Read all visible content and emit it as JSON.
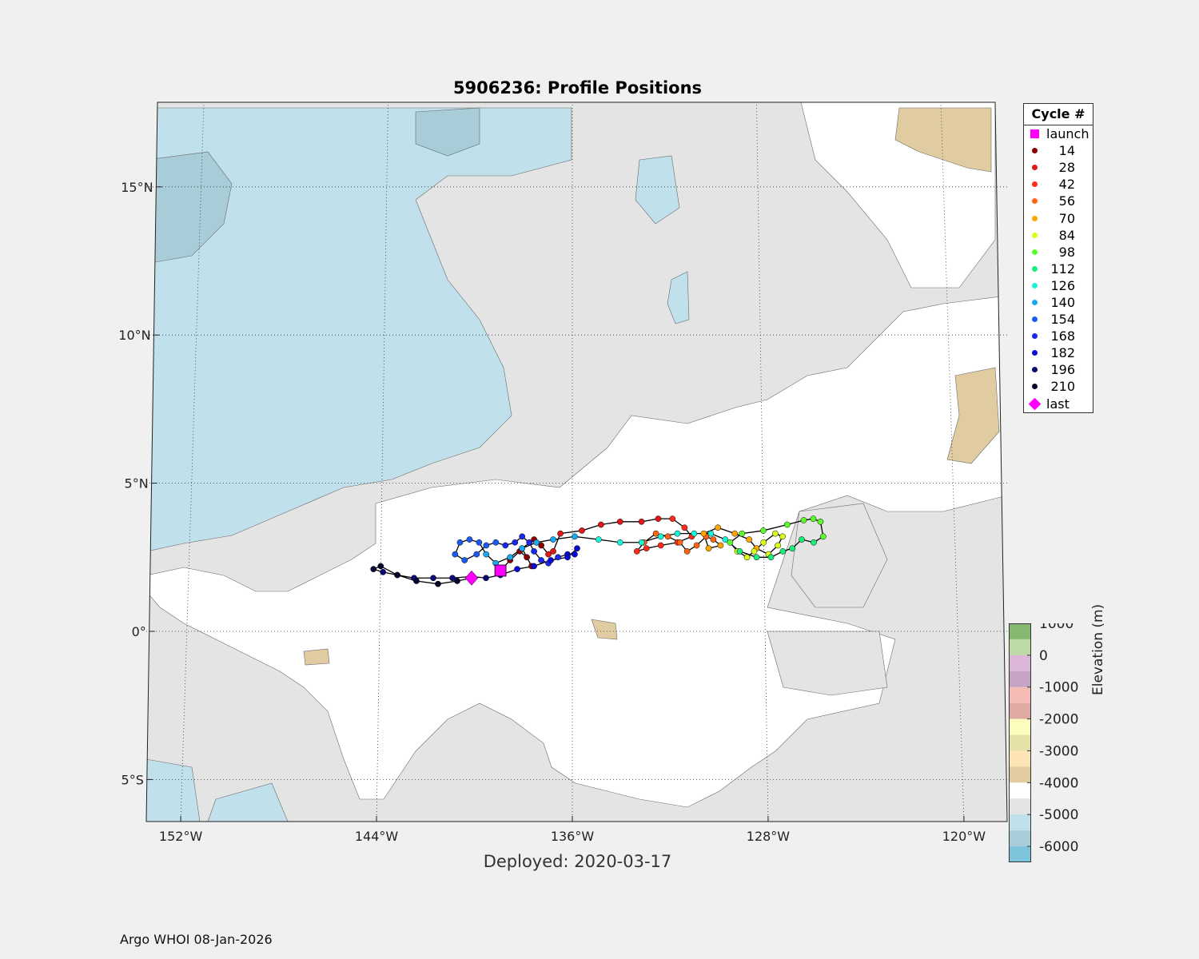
{
  "title": "5906236: Profile Positions",
  "deployed_label": "Deployed: 2020-03-17",
  "footer": "Argo WHOI 08-Jan-2026",
  "map": {
    "lon_range": [
      -154,
      -118.5
    ],
    "lat_range": [
      -6.5,
      17.5
    ],
    "lon_ticks": [
      {
        "value": -152,
        "label": "152°W"
      },
      {
        "value": -144,
        "label": "144°W"
      },
      {
        "value": -136,
        "label": "136°W"
      },
      {
        "value": -128,
        "label": "128°W"
      },
      {
        "value": -120,
        "label": "120°W"
      }
    ],
    "lat_ticks": [
      {
        "value": 15,
        "label": "15°N"
      },
      {
        "value": 10,
        "label": "10°N"
      },
      {
        "value": 5,
        "label": "5°N"
      },
      {
        "value": 0,
        "label": "0°"
      },
      {
        "value": -5,
        "label": "5°S"
      }
    ],
    "grid": true,
    "launch": {
      "lon": -139.0,
      "lat": 2.05
    },
    "last": {
      "lon": -140.2,
      "lat": 1.8
    },
    "trajectory": [
      [
        -139.0,
        2.05
      ],
      [
        -138.6,
        2.4
      ],
      [
        -138.2,
        2.7
      ],
      [
        -137.9,
        2.5
      ],
      [
        -137.7,
        2.2
      ],
      [
        -138.1,
        2.8
      ],
      [
        -137.6,
        3.1
      ],
      [
        -137.3,
        2.9
      ],
      [
        -137.0,
        2.6
      ],
      [
        -136.8,
        2.7
      ],
      [
        -136.5,
        3.3
      ],
      [
        -135.6,
        3.4
      ],
      [
        -134.8,
        3.6
      ],
      [
        -134.0,
        3.7
      ],
      [
        -133.1,
        3.7
      ],
      [
        -132.4,
        3.8
      ],
      [
        -131.8,
        3.8
      ],
      [
        -131.3,
        3.5
      ],
      [
        -131.0,
        3.2
      ],
      [
        -131.6,
        3.0
      ],
      [
        -132.3,
        2.9
      ],
      [
        -132.9,
        2.8
      ],
      [
        -133.3,
        2.7
      ],
      [
        -133.0,
        3.0
      ],
      [
        -132.5,
        3.3
      ],
      [
        -132.0,
        3.2
      ],
      [
        -131.5,
        3.0
      ],
      [
        -131.2,
        2.7
      ],
      [
        -130.8,
        2.9
      ],
      [
        -130.4,
        3.2
      ],
      [
        -130.1,
        3.1
      ],
      [
        -129.8,
        2.9
      ],
      [
        -130.3,
        2.8
      ],
      [
        -130.5,
        3.3
      ],
      [
        -129.9,
        3.5
      ],
      [
        -129.2,
        3.3
      ],
      [
        -128.6,
        3.1
      ],
      [
        -128.3,
        2.8
      ],
      [
        -127.8,
        2.6
      ],
      [
        -127.4,
        2.9
      ],
      [
        -127.2,
        3.2
      ],
      [
        -127.5,
        3.3
      ],
      [
        -128.0,
        3.0
      ],
      [
        -128.4,
        2.7
      ],
      [
        -128.7,
        2.5
      ],
      [
        -129.1,
        2.7
      ],
      [
        -129.4,
        3.0
      ],
      [
        -128.9,
        3.3
      ],
      [
        -128.0,
        3.4
      ],
      [
        -127.0,
        3.6
      ],
      [
        -126.3,
        3.75
      ],
      [
        -125.9,
        3.8
      ],
      [
        -125.6,
        3.7
      ],
      [
        -125.5,
        3.2
      ],
      [
        -125.9,
        3.0
      ],
      [
        -126.4,
        3.1
      ],
      [
        -126.8,
        2.8
      ],
      [
        -127.2,
        2.7
      ],
      [
        -127.7,
        2.5
      ],
      [
        -128.3,
        2.5
      ],
      [
        -129.0,
        2.7
      ],
      [
        -129.6,
        3.1
      ],
      [
        -130.2,
        3.3
      ],
      [
        -130.9,
        3.3
      ],
      [
        -131.6,
        3.3
      ],
      [
        -132.3,
        3.2
      ],
      [
        -133.1,
        3.0
      ],
      [
        -134.0,
        3.0
      ],
      [
        -134.9,
        3.1
      ],
      [
        -135.9,
        3.2
      ],
      [
        -136.8,
        3.1
      ],
      [
        -137.5,
        3.0
      ],
      [
        -138.1,
        2.8
      ],
      [
        -138.6,
        2.5
      ],
      [
        -139.2,
        2.3
      ],
      [
        -139.6,
        2.6
      ],
      [
        -139.9,
        3.0
      ],
      [
        -140.3,
        3.1
      ],
      [
        -140.7,
        3.0
      ],
      [
        -140.9,
        2.6
      ],
      [
        -140.5,
        2.4
      ],
      [
        -140.0,
        2.6
      ],
      [
        -139.6,
        2.9
      ],
      [
        -139.2,
        3.0
      ],
      [
        -138.8,
        2.9
      ],
      [
        -138.4,
        3.0
      ],
      [
        -138.1,
        3.2
      ],
      [
        -137.8,
        3.0
      ],
      [
        -137.6,
        2.7
      ],
      [
        -137.3,
        2.4
      ],
      [
        -137.0,
        2.3
      ],
      [
        -136.6,
        2.5
      ],
      [
        -136.2,
        2.6
      ],
      [
        -135.9,
        2.6
      ],
      [
        -135.8,
        2.8
      ],
      [
        -136.2,
        2.5
      ],
      [
        -136.9,
        2.4
      ],
      [
        -137.6,
        2.2
      ],
      [
        -138.3,
        2.1
      ],
      [
        -139.0,
        1.9
      ],
      [
        -139.6,
        1.8
      ],
      [
        -140.2,
        1.85
      ],
      [
        -141.0,
        1.8
      ],
      [
        -141.8,
        1.8
      ],
      [
        -142.6,
        1.8
      ],
      [
        -143.3,
        1.9
      ],
      [
        -143.9,
        2.0
      ],
      [
        -144.3,
        2.1
      ],
      [
        -144.0,
        2.2
      ],
      [
        -143.3,
        1.9
      ],
      [
        -142.5,
        1.7
      ],
      [
        -141.6,
        1.6
      ],
      [
        -140.8,
        1.7
      ],
      [
        -140.2,
        1.8
      ]
    ],
    "cycle_colors": [
      "#8b0000",
      "#e01818",
      "#ff2b1a",
      "#ff6414",
      "#ffa500",
      "#d8ff18",
      "#5cff2a",
      "#19f07a",
      "#19f5d9",
      "#1aa8f0",
      "#1a5af5",
      "#1a28f0",
      "#0a0ad6",
      "#080878",
      "#05052e"
    ]
  },
  "legend": {
    "title": "Cycle #",
    "launch_label": "launch",
    "last_label": "last",
    "launch_color": "#ff00ff",
    "last_color": "#ff00ff",
    "cycles": [
      {
        "label": "14",
        "color": "#8b0000"
      },
      {
        "label": "28",
        "color": "#e01818"
      },
      {
        "label": "42",
        "color": "#ff2b1a"
      },
      {
        "label": "56",
        "color": "#ff6414"
      },
      {
        "label": "70",
        "color": "#ffa500"
      },
      {
        "label": "84",
        "color": "#d8ff18"
      },
      {
        "label": "98",
        "color": "#5cff2a"
      },
      {
        "label": "112",
        "color": "#19f07a"
      },
      {
        "label": "126",
        "color": "#19f5d9"
      },
      {
        "label": "140",
        "color": "#1aa8f0"
      },
      {
        "label": "154",
        "color": "#1a5af5"
      },
      {
        "label": "168",
        "color": "#1a28f0"
      },
      {
        "label": "182",
        "color": "#0a0ad6"
      },
      {
        "label": "196",
        "color": "#080878"
      },
      {
        "label": "210",
        "color": "#05052e"
      }
    ]
  },
  "colorbar": {
    "label": "Elevation (m)",
    "tick_labels": [
      "1000",
      "0",
      "-1000",
      "-2000",
      "-3000",
      "-4000",
      "-5000",
      "-6000"
    ],
    "tick_values": [
      1000,
      0,
      -1000,
      -2000,
      -3000,
      -4000,
      -5000,
      -6000
    ],
    "range": [
      -6500,
      1000
    ],
    "bands": [
      {
        "from": 500,
        "to": 1000,
        "color": "#86b870"
      },
      {
        "from": 0,
        "to": 500,
        "color": "#bcd9a6"
      },
      {
        "from": -500,
        "to": 0,
        "color": "#dcb6d8"
      },
      {
        "from": -1000,
        "to": -500,
        "color": "#c4a4c2"
      },
      {
        "from": -1500,
        "to": -1000,
        "color": "#f4bcb4"
      },
      {
        "from": -2000,
        "to": -1500,
        "color": "#e0aaa2"
      },
      {
        "from": -2500,
        "to": -2000,
        "color": "#fcfcbc"
      },
      {
        "from": -3000,
        "to": -2500,
        "color": "#e4e0a8"
      },
      {
        "from": -3500,
        "to": -3000,
        "color": "#fde4b4"
      },
      {
        "from": -4000,
        "to": -3500,
        "color": "#e0cca0"
      },
      {
        "from": -4500,
        "to": -4000,
        "color": "#ffffff"
      },
      {
        "from": -5000,
        "to": -4500,
        "color": "#e4e4e4"
      },
      {
        "from": -5500,
        "to": -5000,
        "color": "#c0e0ec"
      },
      {
        "from": -6000,
        "to": -5500,
        "color": "#a8ccd8"
      },
      {
        "from": -6500,
        "to": -6000,
        "color": "#7cc4dc"
      }
    ]
  }
}
